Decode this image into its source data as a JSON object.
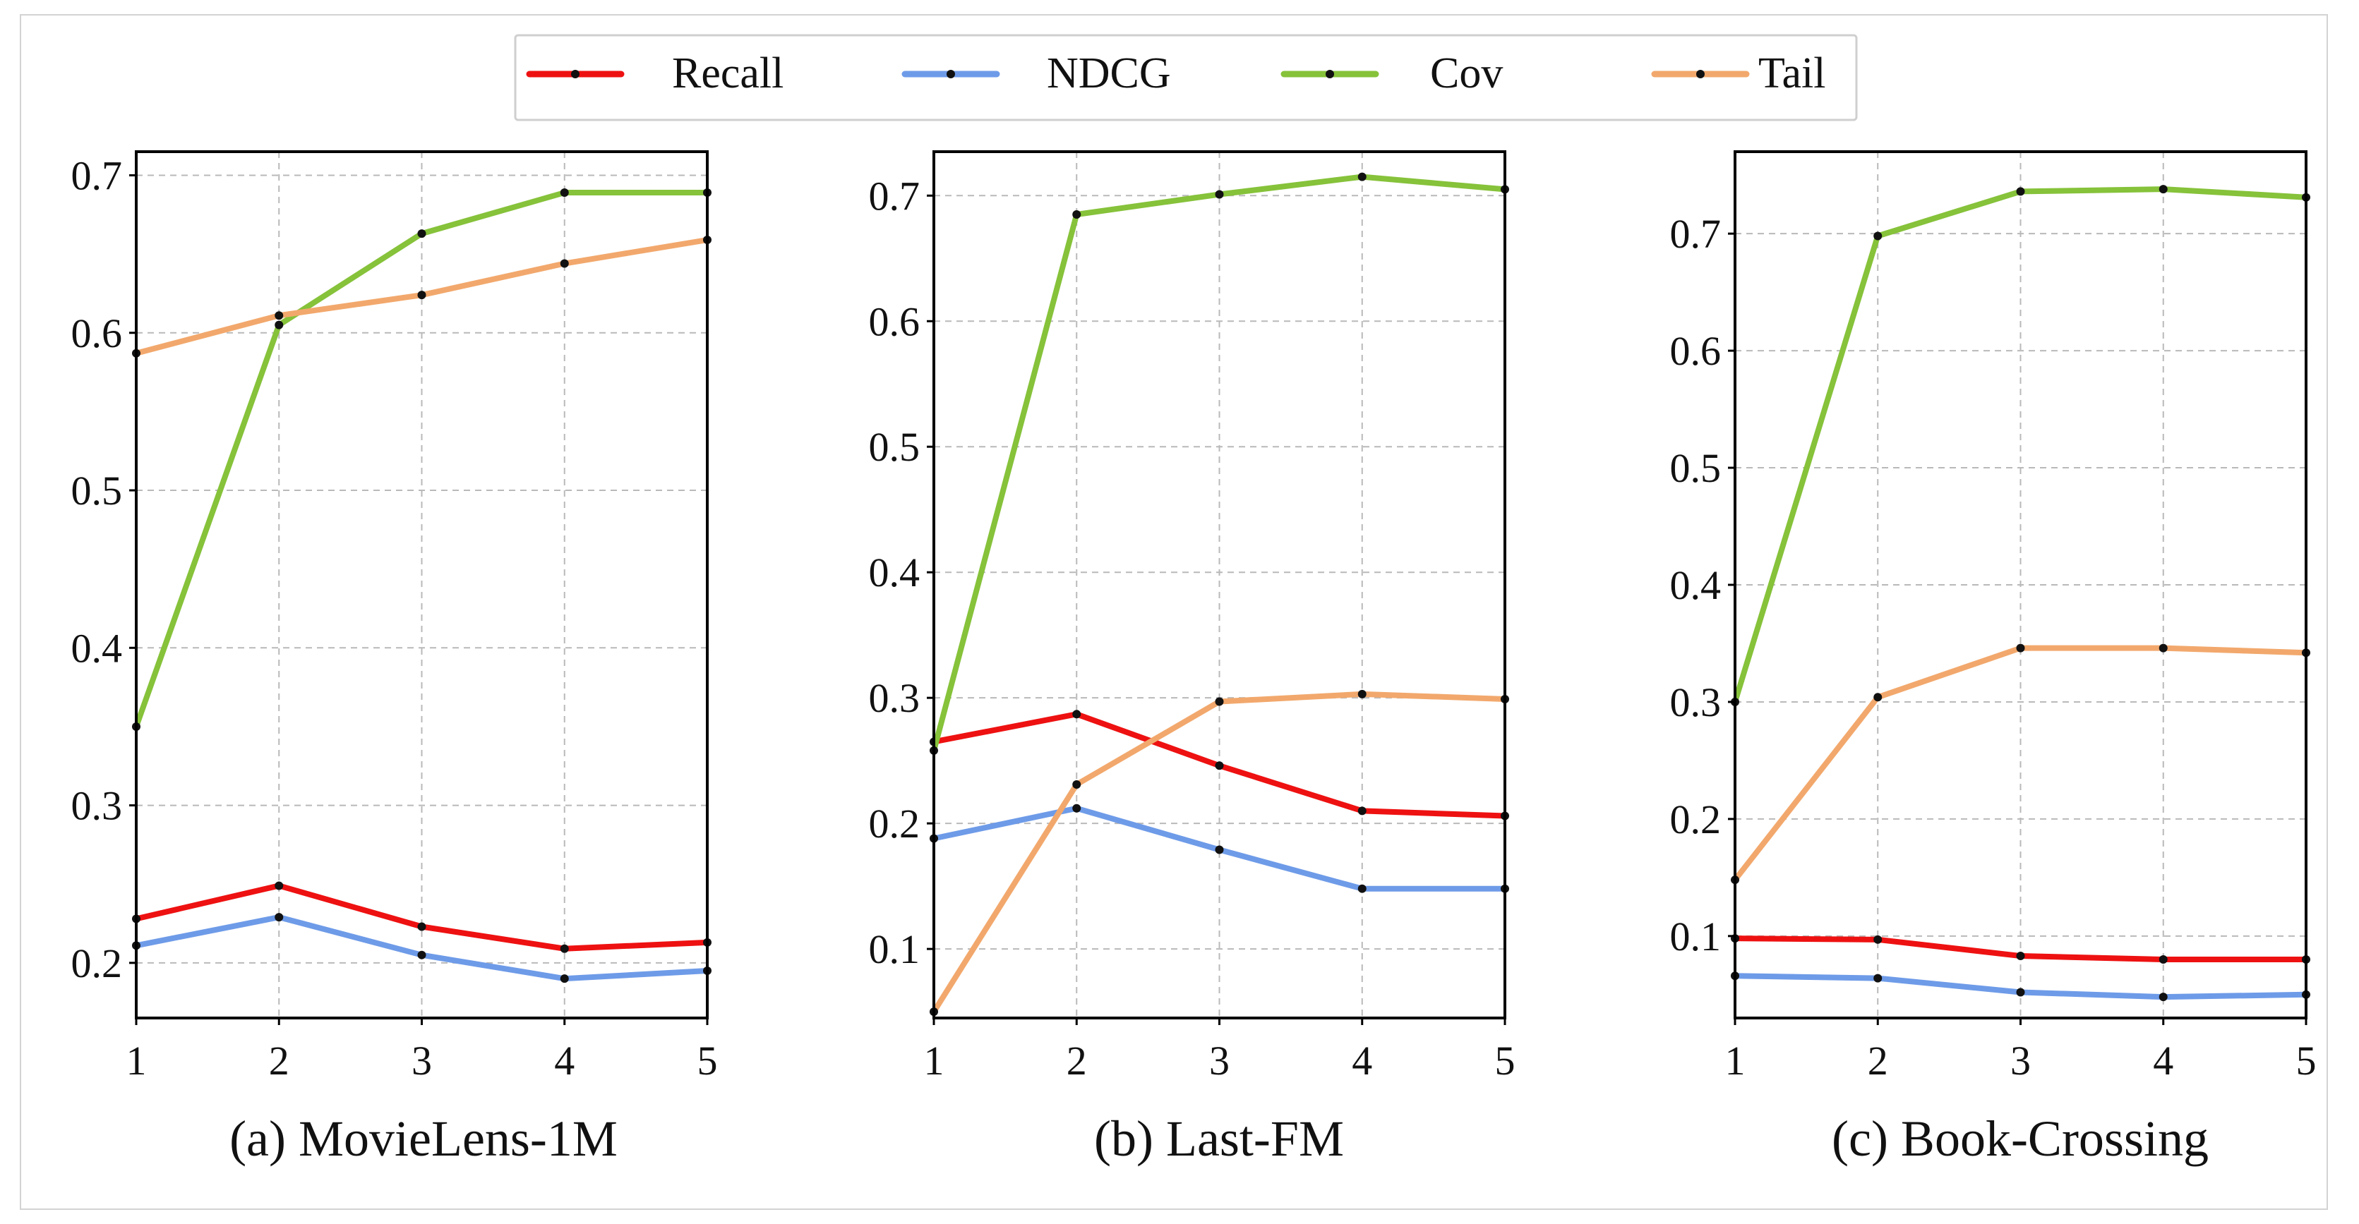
{
  "colors": {
    "recall": "#ee1111",
    "ndcg": "#6e9be8",
    "cov": "#86c23a",
    "tail": "#f2a86c",
    "marker": "#111111",
    "grid": "#b9b9b9",
    "axis": "#000000"
  },
  "legend": {
    "items": [
      {
        "label": "Recall",
        "key": "recall"
      },
      {
        "label": "NDCG",
        "key": "ndcg"
      },
      {
        "label": "Cov",
        "key": "cov"
      },
      {
        "label": "Tail",
        "key": "tail"
      }
    ]
  },
  "chart_data": [
    {
      "type": "line",
      "title": "(a) MovieLens-1M",
      "x": [
        1,
        2,
        3,
        4,
        5
      ],
      "xticks": [
        "1",
        "2",
        "3",
        "4",
        "5"
      ],
      "ylim": [
        0.165,
        0.715
      ],
      "yticks": [
        0.2,
        0.3,
        0.4,
        0.5,
        0.6,
        0.7
      ],
      "ytick_labels": [
        "0.2",
        "0.3",
        "0.4",
        "0.5",
        "0.6",
        "0.7"
      ],
      "grid": true,
      "series": [
        {
          "name": "Recall",
          "key": "recall",
          "values": [
            0.228,
            0.249,
            0.223,
            0.209,
            0.213
          ]
        },
        {
          "name": "NDCG",
          "key": "ndcg",
          "values": [
            0.211,
            0.229,
            0.205,
            0.19,
            0.195
          ]
        },
        {
          "name": "Cov",
          "key": "cov",
          "values": [
            0.35,
            0.605,
            0.663,
            0.689,
            0.689
          ]
        },
        {
          "name": "Tail",
          "key": "tail",
          "values": [
            0.587,
            0.611,
            0.624,
            0.644,
            0.659
          ]
        }
      ]
    },
    {
      "type": "line",
      "title": "(b) Last-FM",
      "x": [
        1,
        2,
        3,
        4,
        5
      ],
      "xticks": [
        "1",
        "2",
        "3",
        "4",
        "5"
      ],
      "ylim": [
        0.045,
        0.735
      ],
      "yticks": [
        0.1,
        0.2,
        0.3,
        0.4,
        0.5,
        0.6,
        0.7
      ],
      "ytick_labels": [
        "0.1",
        "0.2",
        "0.3",
        "0.4",
        "0.5",
        "0.6",
        "0.7"
      ],
      "grid": true,
      "series": [
        {
          "name": "Recall",
          "key": "recall",
          "values": [
            0.265,
            0.287,
            0.246,
            0.21,
            0.206
          ]
        },
        {
          "name": "NDCG",
          "key": "ndcg",
          "values": [
            0.188,
            0.212,
            0.179,
            0.148,
            0.148
          ]
        },
        {
          "name": "Cov",
          "key": "cov",
          "values": [
            0.258,
            0.685,
            0.701,
            0.715,
            0.705
          ]
        },
        {
          "name": "Tail",
          "key": "tail",
          "values": [
            0.05,
            0.231,
            0.297,
            0.303,
            0.299
          ]
        }
      ]
    },
    {
      "type": "line",
      "title": "(c) Book-Crossing",
      "x": [
        1,
        2,
        3,
        4,
        5
      ],
      "xticks": [
        "1",
        "2",
        "3",
        "4",
        "5"
      ],
      "ylim": [
        0.03,
        0.77
      ],
      "yticks": [
        0.1,
        0.2,
        0.3,
        0.4,
        0.5,
        0.6,
        0.7
      ],
      "ytick_labels": [
        "0.1",
        "0.2",
        "0.3",
        "0.4",
        "0.5",
        "0.6",
        "0.7"
      ],
      "grid": true,
      "series": [
        {
          "name": "Recall",
          "key": "recall",
          "values": [
            0.098,
            0.097,
            0.083,
            0.08,
            0.08
          ]
        },
        {
          "name": "NDCG",
          "key": "ndcg",
          "values": [
            0.066,
            0.064,
            0.052,
            0.048,
            0.05
          ]
        },
        {
          "name": "Cov",
          "key": "cov",
          "values": [
            0.3,
            0.698,
            0.736,
            0.738,
            0.731
          ]
        },
        {
          "name": "Tail",
          "key": "tail",
          "values": [
            0.148,
            0.304,
            0.346,
            0.346,
            0.342
          ]
        }
      ]
    }
  ]
}
